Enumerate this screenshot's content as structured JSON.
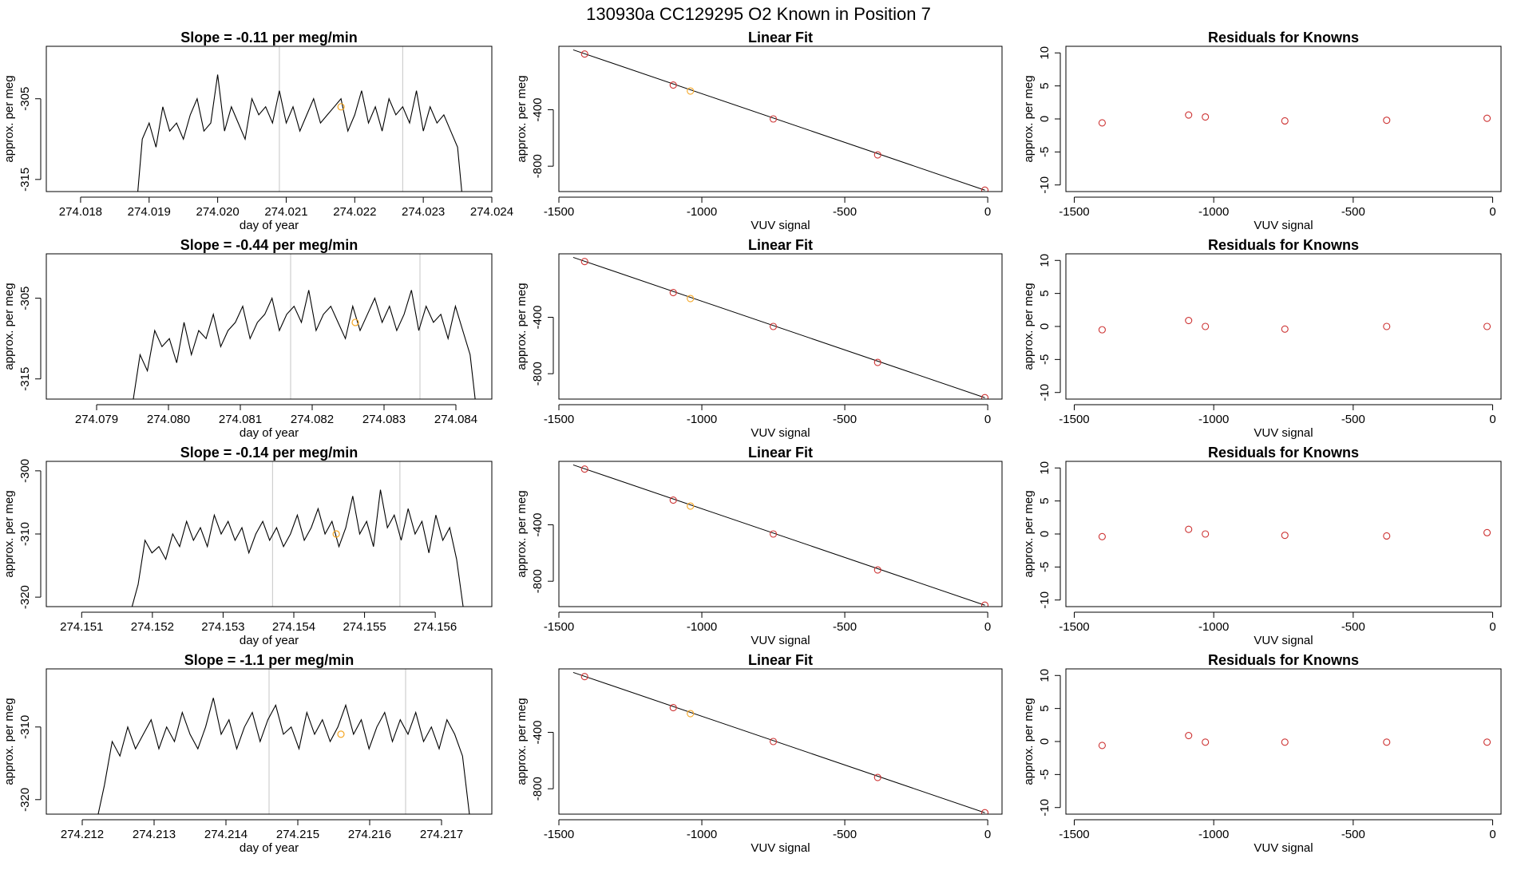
{
  "title": "130930a     CC129295   O2 Known in Position  7",
  "colors": {
    "trace": "#000000",
    "gridline": "#cfcfcf",
    "known": "#cd3333",
    "highlight": "#f5a623",
    "fitline": "#000000"
  },
  "chart_data": [
    {
      "type": "line",
      "title": "Slope =  -0.11  per meg/min",
      "xlabel": "day of year",
      "ylabel": "approx. per meg",
      "xlim": [
        274.0175,
        274.024
      ],
      "ylim": [
        -316.5,
        -298.5
      ],
      "xticks": [
        {
          "v": 274.018,
          "label": "274.018"
        },
        {
          "v": 274.019,
          "label": "274.019"
        },
        {
          "v": 274.02,
          "label": "274.020"
        },
        {
          "v": 274.021,
          "label": "274.021"
        },
        {
          "v": 274.022,
          "label": "274.022"
        },
        {
          "v": 274.023,
          "label": "274.023"
        },
        {
          "v": 274.024,
          "label": "274.024"
        }
      ],
      "yticks": [
        {
          "v": -305,
          "label": "-305"
        },
        {
          "v": -315,
          "label": "-315"
        }
      ],
      "vlines": [
        274.0209,
        274.0227
      ],
      "trace_x_range": [
        274.0188,
        274.0236
      ],
      "trace": [
        -320,
        -310,
        -308,
        -311,
        -306,
        -309,
        -308,
        -310,
        -307,
        -305,
        -309,
        -308,
        -302,
        -309,
        -306,
        -308,
        -310,
        -305,
        -307,
        -306,
        -308,
        -304,
        -308,
        -306,
        -309,
        -307,
        -305,
        -308,
        -307,
        -306,
        -305,
        -309,
        -307,
        -304,
        -308,
        -306,
        -309,
        -305,
        -307,
        -306,
        -308,
        -304,
        -309,
        -306,
        -308,
        -307,
        -309,
        -311,
        -320
      ],
      "highlight_point": {
        "x": 274.0218,
        "y": -306
      }
    },
    {
      "type": "scatter",
      "title": "Linear Fit",
      "xlabel": "VUV signal",
      "ylabel": "approx. per meg",
      "xlim": [
        -1500,
        50
      ],
      "ylim": [
        -980,
        50
      ],
      "xticks": [
        {
          "v": -1500,
          "label": "-1500"
        },
        {
          "v": -1000,
          "label": "-1000"
        },
        {
          "v": -500,
          "label": "-500"
        },
        {
          "v": 0,
          "label": "0"
        }
      ],
      "yticks": [
        {
          "v": -400,
          "label": "-400"
        },
        {
          "v": -800,
          "label": "-800"
        }
      ],
      "points": [
        {
          "x": -1410,
          "y": -5
        },
        {
          "x": -1100,
          "y": -225
        },
        {
          "x": -1040,
          "y": -267
        },
        {
          "x": -750,
          "y": -465
        },
        {
          "x": -385,
          "y": -720
        },
        {
          "x": -10,
          "y": -970
        }
      ],
      "highlight_index": 2,
      "fit_line": {
        "x": [
          -1450,
          -10
        ],
        "y": [
          25,
          -970
        ]
      }
    },
    {
      "type": "scatter",
      "title": "Residuals for Knowns",
      "xlabel": "VUV signal",
      "ylabel": "approx. per meg",
      "xlim": [
        -1530,
        30
      ],
      "ylim": [
        -11,
        11
      ],
      "xticks": [
        {
          "v": -1500,
          "label": "-1500"
        },
        {
          "v": -1000,
          "label": "-1000"
        },
        {
          "v": -500,
          "label": "-500"
        },
        {
          "v": 0,
          "label": "0"
        }
      ],
      "yticks": [
        {
          "v": 10,
          "label": "10"
        },
        {
          "v": 5,
          "label": "5"
        },
        {
          "v": 0,
          "label": "0"
        },
        {
          "v": -5,
          "label": "-5"
        },
        {
          "v": -10,
          "label": "-10"
        }
      ],
      "points": [
        {
          "x": -1400,
          "y": -0.6
        },
        {
          "x": -1090,
          "y": 0.6
        },
        {
          "x": -1030,
          "y": 0.3
        },
        {
          "x": -745,
          "y": -0.3
        },
        {
          "x": -380,
          "y": -0.2
        },
        {
          "x": -20,
          "y": 0.1
        }
      ]
    },
    {
      "type": "line",
      "title": "Slope =  -0.44  per meg/min",
      "xlabel": "day of year",
      "ylabel": "approx. per meg",
      "xlim": [
        274.0783,
        274.0845
      ],
      "ylim": [
        -317.5,
        -299.5
      ],
      "xticks": [
        {
          "v": 274.079,
          "label": "274.079"
        },
        {
          "v": 274.08,
          "label": "274.080"
        },
        {
          "v": 274.081,
          "label": "274.081"
        },
        {
          "v": 274.082,
          "label": "274.082"
        },
        {
          "v": 274.083,
          "label": "274.083"
        },
        {
          "v": 274.084,
          "label": "274.084"
        }
      ],
      "yticks": [
        {
          "v": -305,
          "label": "-305"
        },
        {
          "v": -315,
          "label": "-315"
        }
      ],
      "vlines": [
        274.0817,
        274.0835
      ],
      "trace_x_range": [
        274.0794,
        274.0843
      ],
      "trace": [
        -320,
        -318,
        -312,
        -314,
        -309,
        -311,
        -310,
        -313,
        -308,
        -312,
        -309,
        -310,
        -307,
        -311,
        -309,
        -308,
        -306,
        -310,
        -308,
        -307,
        -305,
        -309,
        -307,
        -306,
        -308,
        -304,
        -309,
        -307,
        -306,
        -308,
        -310,
        -306,
        -309,
        -307,
        -305,
        -308,
        -306,
        -309,
        -307,
        -304,
        -309,
        -306,
        -308,
        -307,
        -310,
        -306,
        -309,
        -312,
        -320
      ],
      "highlight_point": {
        "x": 274.0826,
        "y": -308
      }
    },
    {
      "type": "scatter",
      "title": "Linear Fit",
      "xlabel": "VUV signal",
      "ylabel": "approx. per meg",
      "xlim": [
        -1500,
        50
      ],
      "ylim": [
        -980,
        50
      ],
      "xticks": [
        {
          "v": -1500,
          "label": "-1500"
        },
        {
          "v": -1000,
          "label": "-1000"
        },
        {
          "v": -500,
          "label": "-500"
        },
        {
          "v": 0,
          "label": "0"
        }
      ],
      "yticks": [
        {
          "v": -400,
          "label": "-400"
        },
        {
          "v": -800,
          "label": "-800"
        }
      ],
      "points": [
        {
          "x": -1410,
          "y": -5
        },
        {
          "x": -1100,
          "y": -225
        },
        {
          "x": -1040,
          "y": -267
        },
        {
          "x": -750,
          "y": -465
        },
        {
          "x": -385,
          "y": -720
        },
        {
          "x": -10,
          "y": -970
        }
      ],
      "highlight_index": 2,
      "fit_line": {
        "x": [
          -1450,
          -10
        ],
        "y": [
          25,
          -970
        ]
      }
    },
    {
      "type": "scatter",
      "title": "Residuals for Knowns",
      "xlabel": "VUV signal",
      "ylabel": "approx. per meg",
      "xlim": [
        -1530,
        30
      ],
      "ylim": [
        -11,
        11
      ],
      "xticks": [
        {
          "v": -1500,
          "label": "-1500"
        },
        {
          "v": -1000,
          "label": "-1000"
        },
        {
          "v": -500,
          "label": "-500"
        },
        {
          "v": 0,
          "label": "0"
        }
      ],
      "yticks": [
        {
          "v": 10,
          "label": "10"
        },
        {
          "v": 5,
          "label": "5"
        },
        {
          "v": 0,
          "label": "0"
        },
        {
          "v": -5,
          "label": "-5"
        },
        {
          "v": -10,
          "label": "-10"
        }
      ],
      "points": [
        {
          "x": -1400,
          "y": -0.5
        },
        {
          "x": -1090,
          "y": 0.9
        },
        {
          "x": -1030,
          "y": 0.0
        },
        {
          "x": -745,
          "y": -0.4
        },
        {
          "x": -380,
          "y": 0.0
        },
        {
          "x": -20,
          "y": 0.0
        }
      ]
    },
    {
      "type": "line",
      "title": "Slope =  -0.14  per meg/min",
      "xlabel": "day of year",
      "ylabel": "approx. per meg",
      "xlim": [
        274.1505,
        274.1568
      ],
      "ylim": [
        -321.5,
        -298.5
      ],
      "xticks": [
        {
          "v": 274.151,
          "label": "274.151"
        },
        {
          "v": 274.152,
          "label": "274.152"
        },
        {
          "v": 274.153,
          "label": "274.153"
        },
        {
          "v": 274.154,
          "label": "274.154"
        },
        {
          "v": 274.155,
          "label": "274.155"
        },
        {
          "v": 274.156,
          "label": "274.156"
        }
      ],
      "yticks": [
        {
          "v": -300,
          "label": "-300"
        },
        {
          "v": -310,
          "label": "-310"
        },
        {
          "v": -320,
          "label": "-320"
        }
      ],
      "vlines": [
        274.1537,
        274.1555
      ],
      "trace_x_range": [
        274.1517,
        274.1564
      ],
      "trace": [
        -322,
        -318,
        -311,
        -313,
        -312,
        -314,
        -310,
        -312,
        -308,
        -311,
        -309,
        -312,
        -307,
        -310,
        -308,
        -311,
        -309,
        -313,
        -310,
        -308,
        -311,
        -309,
        -312,
        -310,
        -307,
        -311,
        -309,
        -306,
        -310,
        -308,
        -312,
        -309,
        -304,
        -310,
        -308,
        -312,
        -303,
        -309,
        -307,
        -311,
        -306,
        -310,
        -308,
        -313,
        -307,
        -311,
        -309,
        -314,
        -322
      ],
      "highlight_point": {
        "x": 274.1546,
        "y": -310
      }
    },
    {
      "type": "scatter",
      "title": "Linear Fit",
      "xlabel": "VUV signal",
      "ylabel": "approx. per meg",
      "xlim": [
        -1500,
        50
      ],
      "ylim": [
        -980,
        50
      ],
      "xticks": [
        {
          "v": -1500,
          "label": "-1500"
        },
        {
          "v": -1000,
          "label": "-1000"
        },
        {
          "v": -500,
          "label": "-500"
        },
        {
          "v": 0,
          "label": "0"
        }
      ],
      "yticks": [
        {
          "v": -400,
          "label": "-400"
        },
        {
          "v": -800,
          "label": "-800"
        }
      ],
      "points": [
        {
          "x": -1410,
          "y": -5
        },
        {
          "x": -1100,
          "y": -225
        },
        {
          "x": -1040,
          "y": -267
        },
        {
          "x": -750,
          "y": -465
        },
        {
          "x": -385,
          "y": -720
        },
        {
          "x": -10,
          "y": -970
        }
      ],
      "highlight_index": 2,
      "fit_line": {
        "x": [
          -1450,
          -10
        ],
        "y": [
          25,
          -970
        ]
      }
    },
    {
      "type": "scatter",
      "title": "Residuals for Knowns",
      "xlabel": "VUV signal",
      "ylabel": "approx. per meg",
      "xlim": [
        -1530,
        30
      ],
      "ylim": [
        -11,
        11
      ],
      "xticks": [
        {
          "v": -1500,
          "label": "-1500"
        },
        {
          "v": -1000,
          "label": "-1000"
        },
        {
          "v": -500,
          "label": "-500"
        },
        {
          "v": 0,
          "label": "0"
        }
      ],
      "yticks": [
        {
          "v": 10,
          "label": "10"
        },
        {
          "v": 5,
          "label": "5"
        },
        {
          "v": 0,
          "label": "0"
        },
        {
          "v": -5,
          "label": "-5"
        },
        {
          "v": -10,
          "label": "-10"
        }
      ],
      "points": [
        {
          "x": -1400,
          "y": -0.4
        },
        {
          "x": -1090,
          "y": 0.7
        },
        {
          "x": -1030,
          "y": 0.0
        },
        {
          "x": -745,
          "y": -0.2
        },
        {
          "x": -380,
          "y": -0.3
        },
        {
          "x": -20,
          "y": 0.2
        }
      ]
    },
    {
      "type": "line",
      "title": "Slope =  -1.1  per meg/min",
      "xlabel": "day of year",
      "ylabel": "approx. per meg",
      "xlim": [
        274.2115,
        274.2177
      ],
      "ylim": [
        -322,
        -302
      ],
      "xticks": [
        {
          "v": 274.212,
          "label": "274.212"
        },
        {
          "v": 274.213,
          "label": "274.213"
        },
        {
          "v": 274.214,
          "label": "274.214"
        },
        {
          "v": 274.215,
          "label": "274.215"
        },
        {
          "v": 274.216,
          "label": "274.216"
        },
        {
          "v": 274.217,
          "label": "274.217"
        }
      ],
      "yticks": [
        {
          "v": -310,
          "label": "-310"
        },
        {
          "v": -320,
          "label": "-320"
        }
      ],
      "vlines": [
        274.2146,
        274.2165
      ],
      "trace_x_range": [
        274.2122,
        274.2174
      ],
      "trace": [
        -323,
        -318,
        -312,
        -314,
        -310,
        -313,
        -311,
        -309,
        -313,
        -310,
        -312,
        -308,
        -311,
        -313,
        -310,
        -306,
        -311,
        -309,
        -313,
        -310,
        -308,
        -312,
        -309,
        -307,
        -311,
        -310,
        -313,
        -308,
        -311,
        -309,
        -312,
        -310,
        -307,
        -311,
        -309,
        -313,
        -310,
        -308,
        -312,
        -309,
        -311,
        -308,
        -312,
        -310,
        -313,
        -309,
        -311,
        -314,
        -323
      ],
      "highlight_point": {
        "x": 274.2156,
        "y": -311
      }
    },
    {
      "type": "scatter",
      "title": "Linear Fit",
      "xlabel": "VUV signal",
      "ylabel": "approx. per meg",
      "xlim": [
        -1500,
        50
      ],
      "ylim": [
        -980,
        50
      ],
      "xticks": [
        {
          "v": -1500,
          "label": "-1500"
        },
        {
          "v": -1000,
          "label": "-1000"
        },
        {
          "v": -500,
          "label": "-500"
        },
        {
          "v": 0,
          "label": "0"
        }
      ],
      "yticks": [
        {
          "v": -400,
          "label": "-400"
        },
        {
          "v": -800,
          "label": "-800"
        }
      ],
      "points": [
        {
          "x": -1410,
          "y": -5
        },
        {
          "x": -1100,
          "y": -225
        },
        {
          "x": -1040,
          "y": -267
        },
        {
          "x": -750,
          "y": -465
        },
        {
          "x": -385,
          "y": -720
        },
        {
          "x": -10,
          "y": -970
        }
      ],
      "highlight_index": 2,
      "fit_line": {
        "x": [
          -1450,
          -10
        ],
        "y": [
          25,
          -970
        ]
      }
    },
    {
      "type": "scatter",
      "title": "Residuals for Knowns",
      "xlabel": "VUV signal",
      "ylabel": "approx. per meg",
      "xlim": [
        -1530,
        30
      ],
      "ylim": [
        -11,
        11
      ],
      "xticks": [
        {
          "v": -1500,
          "label": "-1500"
        },
        {
          "v": -1000,
          "label": "-1000"
        },
        {
          "v": -500,
          "label": "-500"
        },
        {
          "v": 0,
          "label": "0"
        }
      ],
      "yticks": [
        {
          "v": 10,
          "label": "10"
        },
        {
          "v": 5,
          "label": "5"
        },
        {
          "v": 0,
          "label": "0"
        },
        {
          "v": -5,
          "label": "-5"
        },
        {
          "v": -10,
          "label": "-10"
        }
      ],
      "points": [
        {
          "x": -1400,
          "y": -0.6
        },
        {
          "x": -1090,
          "y": 0.9
        },
        {
          "x": -1030,
          "y": -0.1
        },
        {
          "x": -745,
          "y": -0.1
        },
        {
          "x": -380,
          "y": -0.1
        },
        {
          "x": -20,
          "y": -0.1
        }
      ]
    }
  ]
}
